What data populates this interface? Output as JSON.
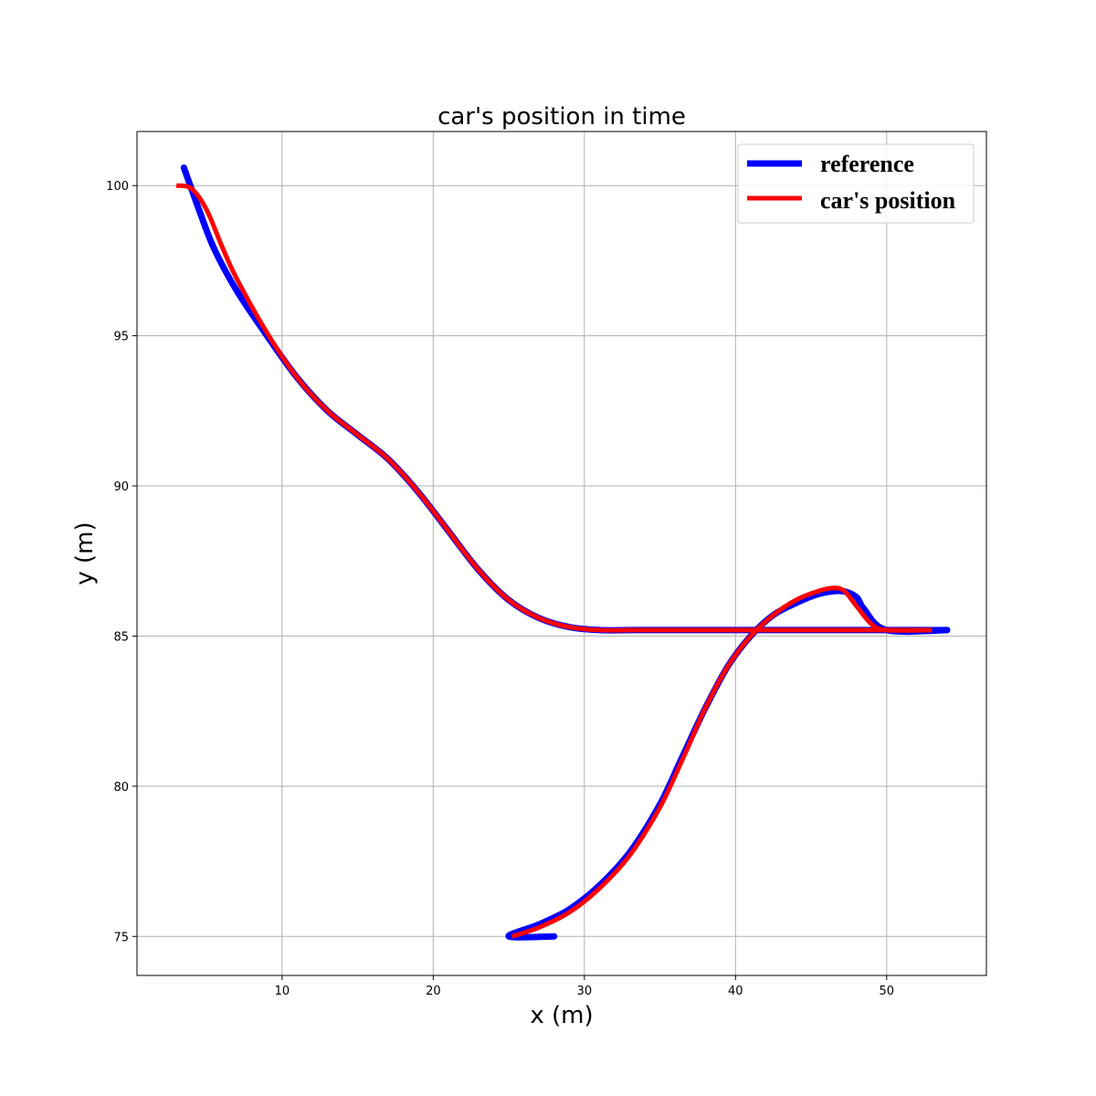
{
  "chart_data": {
    "type": "line",
    "title": "car's position in time",
    "xlabel": "x (m)",
    "ylabel": "y (m)",
    "xlim": [
      0.4,
      56.6
    ],
    "ylim": [
      73.7,
      101.8
    ],
    "xticks": [
      10,
      20,
      30,
      40,
      50
    ],
    "yticks": [
      75,
      80,
      85,
      90,
      95,
      100
    ],
    "grid": true,
    "legend_position": "top-right",
    "series": [
      {
        "name": "reference",
        "color": "#0000ff",
        "x": [
          3.5,
          4.5,
          5.5,
          7,
          9,
          11,
          13,
          15,
          17,
          19,
          21,
          23,
          25,
          27,
          29,
          31,
          33,
          35,
          40,
          45,
          50,
          54
        ],
        "y": [
          100.6,
          99.2,
          97.9,
          96.5,
          95.0,
          93.6,
          92.5,
          91.7,
          90.9,
          89.8,
          88.5,
          87.2,
          86.2,
          85.6,
          85.3,
          85.2,
          85.2,
          85.2,
          85.2,
          85.2,
          85.2,
          85.2
        ]
      },
      {
        "name": "reference",
        "color": "#0000ff",
        "x": [
          28,
          25,
          27,
          29,
          31,
          33,
          35,
          36.5,
          38,
          39.5,
          41,
          42.5,
          44,
          45.5,
          47,
          48,
          48.5,
          50,
          54
        ],
        "y": [
          75.0,
          75.0,
          75.4,
          75.9,
          76.7,
          77.8,
          79.4,
          81.0,
          82.6,
          84.0,
          85.0,
          85.7,
          86.1,
          86.4,
          86.5,
          86.3,
          85.9,
          85.2,
          85.2
        ]
      },
      {
        "name": "car's position",
        "color": "#ff0000",
        "x": [
          3,
          4,
          5,
          6,
          7,
          9,
          11,
          13,
          15,
          17,
          19,
          21,
          23,
          25,
          27,
          29,
          31,
          33,
          35,
          40,
          45,
          50,
          53
        ],
        "y": [
          100.0,
          99.9,
          99.2,
          98.0,
          96.9,
          95.1,
          93.6,
          92.5,
          91.7,
          90.9,
          89.8,
          88.5,
          87.2,
          86.2,
          85.6,
          85.3,
          85.2,
          85.2,
          85.2,
          85.2,
          85.2,
          85.2,
          85.2
        ]
      },
      {
        "name": "car's position",
        "color": "#ff0000",
        "x": [
          25.2,
          27,
          29,
          31,
          33,
          35,
          36.5,
          38,
          39.5,
          41,
          42.5,
          44,
          45.5,
          46.5,
          47.2,
          48,
          49,
          50,
          53
        ],
        "y": [
          75.0,
          75.3,
          75.8,
          76.6,
          77.7,
          79.3,
          80.9,
          82.6,
          84.0,
          85.0,
          85.7,
          86.2,
          86.5,
          86.6,
          86.5,
          86.0,
          85.4,
          85.2,
          85.2
        ]
      }
    ],
    "legend": [
      {
        "label": "reference",
        "color": "#0000ff"
      },
      {
        "label": "car's position",
        "color": "#ff0000"
      }
    ]
  }
}
